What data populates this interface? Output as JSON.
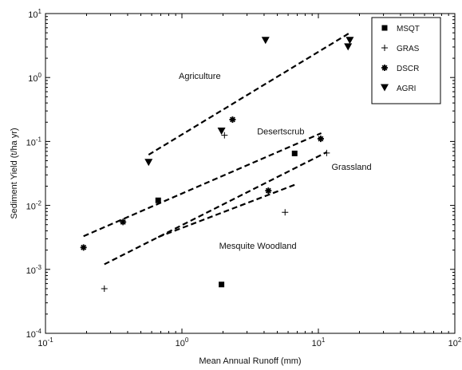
{
  "chart_data": {
    "type": "scatter",
    "xlabel": "Mean Annual Runoff (mm)",
    "ylabel": "Sediment Yield (t/ha yr)",
    "xscale": "log",
    "yscale": "log",
    "xlim": [
      0.1,
      100
    ],
    "ylim": [
      0.0001,
      10
    ],
    "grid": false,
    "legend_position": "top-right",
    "x_ticks": [
      {
        "value": 0.1,
        "base": "10",
        "exp": "-1"
      },
      {
        "value": 1,
        "base": "10",
        "exp": "0"
      },
      {
        "value": 10,
        "base": "10",
        "exp": "1"
      },
      {
        "value": 100,
        "base": "10",
        "exp": "2"
      }
    ],
    "y_ticks": [
      {
        "value": 0.0001,
        "base": "10",
        "exp": "-4"
      },
      {
        "value": 0.001,
        "base": "10",
        "exp": "-3"
      },
      {
        "value": 0.01,
        "base": "10",
        "exp": "-2"
      },
      {
        "value": 0.1,
        "base": "10",
        "exp": "-1"
      },
      {
        "value": 1,
        "base": "10",
        "exp": "0"
      },
      {
        "value": 10,
        "base": "10",
        "exp": "1"
      }
    ],
    "series": [
      {
        "name": "MSQT",
        "marker": "square",
        "points": [
          [
            0.67,
            0.012
          ],
          [
            1.95,
            0.00058
          ],
          [
            6.7,
            0.065
          ]
        ]
      },
      {
        "name": "GRAS",
        "marker": "plus",
        "points": [
          [
            0.27,
            0.0005
          ],
          [
            2.05,
            0.125
          ],
          [
            5.7,
            0.0078
          ],
          [
            11.5,
            0.066
          ]
        ]
      },
      {
        "name": "DSCR",
        "marker": "asterisk",
        "points": [
          [
            0.19,
            0.0022
          ],
          [
            0.37,
            0.0055
          ],
          [
            2.35,
            0.22
          ],
          [
            4.3,
            0.017
          ],
          [
            10.4,
            0.11
          ]
        ]
      },
      {
        "name": "AGRI",
        "marker": "triangle-down",
        "points": [
          [
            0.57,
            0.047
          ],
          [
            1.95,
            0.145
          ],
          [
            4.1,
            3.8
          ],
          [
            16.5,
            3.0
          ],
          [
            17.0,
            3.8
          ]
        ]
      }
    ],
    "fit_lines": [
      {
        "group": "Agriculture",
        "from": [
          0.57,
          0.062
        ],
        "to": [
          17.0,
          5.0
        ]
      },
      {
        "group": "Desertscrub",
        "from": [
          0.19,
          0.0033
        ],
        "to": [
          10.5,
          0.135
        ]
      },
      {
        "group": "Grassland",
        "from": [
          0.27,
          0.0012
        ],
        "to": [
          11.5,
          0.068
        ]
      },
      {
        "group": "Mesquite Woodland",
        "from": [
          0.67,
          0.0032
        ],
        "to": [
          6.7,
          0.021
        ]
      }
    ],
    "annotations": [
      {
        "text": "Agriculture",
        "x": 1.35,
        "y": 0.95
      },
      {
        "text": "Desertscrub",
        "x": 5.3,
        "y": 0.13
      },
      {
        "text": "Grassland",
        "x": 17.5,
        "y": 0.036
      },
      {
        "text": "Mesquite Woodland",
        "x": 3.6,
        "y": 0.0021
      }
    ]
  }
}
